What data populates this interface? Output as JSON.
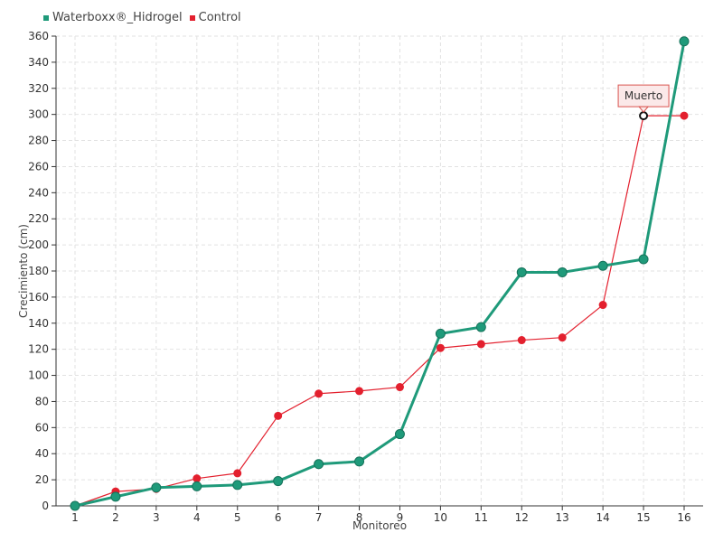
{
  "chart_data": {
    "type": "line",
    "x": [
      1,
      2,
      3,
      4,
      5,
      6,
      7,
      8,
      9,
      10,
      11,
      12,
      13,
      14,
      15,
      16
    ],
    "series": [
      {
        "name": "Waterboxx®_Hidrogel",
        "color": "#1f9a7a",
        "values": [
          0,
          7,
          14,
          15,
          16,
          19,
          32,
          34,
          55,
          132,
          137,
          179,
          179,
          184,
          189,
          356
        ]
      },
      {
        "name": "Control",
        "color": "#e3202e",
        "values": [
          0,
          11,
          13,
          21,
          25,
          69,
          86,
          88,
          91,
          121,
          124,
          127,
          129,
          154,
          299,
          299
        ]
      }
    ],
    "xlabel": "Monitoreo",
    "ylabel": "Crecimiento (cm)",
    "ylim": [
      0,
      360
    ],
    "yticks": [
      0,
      20,
      40,
      60,
      80,
      100,
      120,
      140,
      160,
      180,
      200,
      220,
      240,
      260,
      280,
      300,
      320,
      340,
      360
    ],
    "grid": true,
    "legend_position": "top-left",
    "annotation": {
      "series": 1,
      "x": 15,
      "text": "Muerto"
    }
  }
}
